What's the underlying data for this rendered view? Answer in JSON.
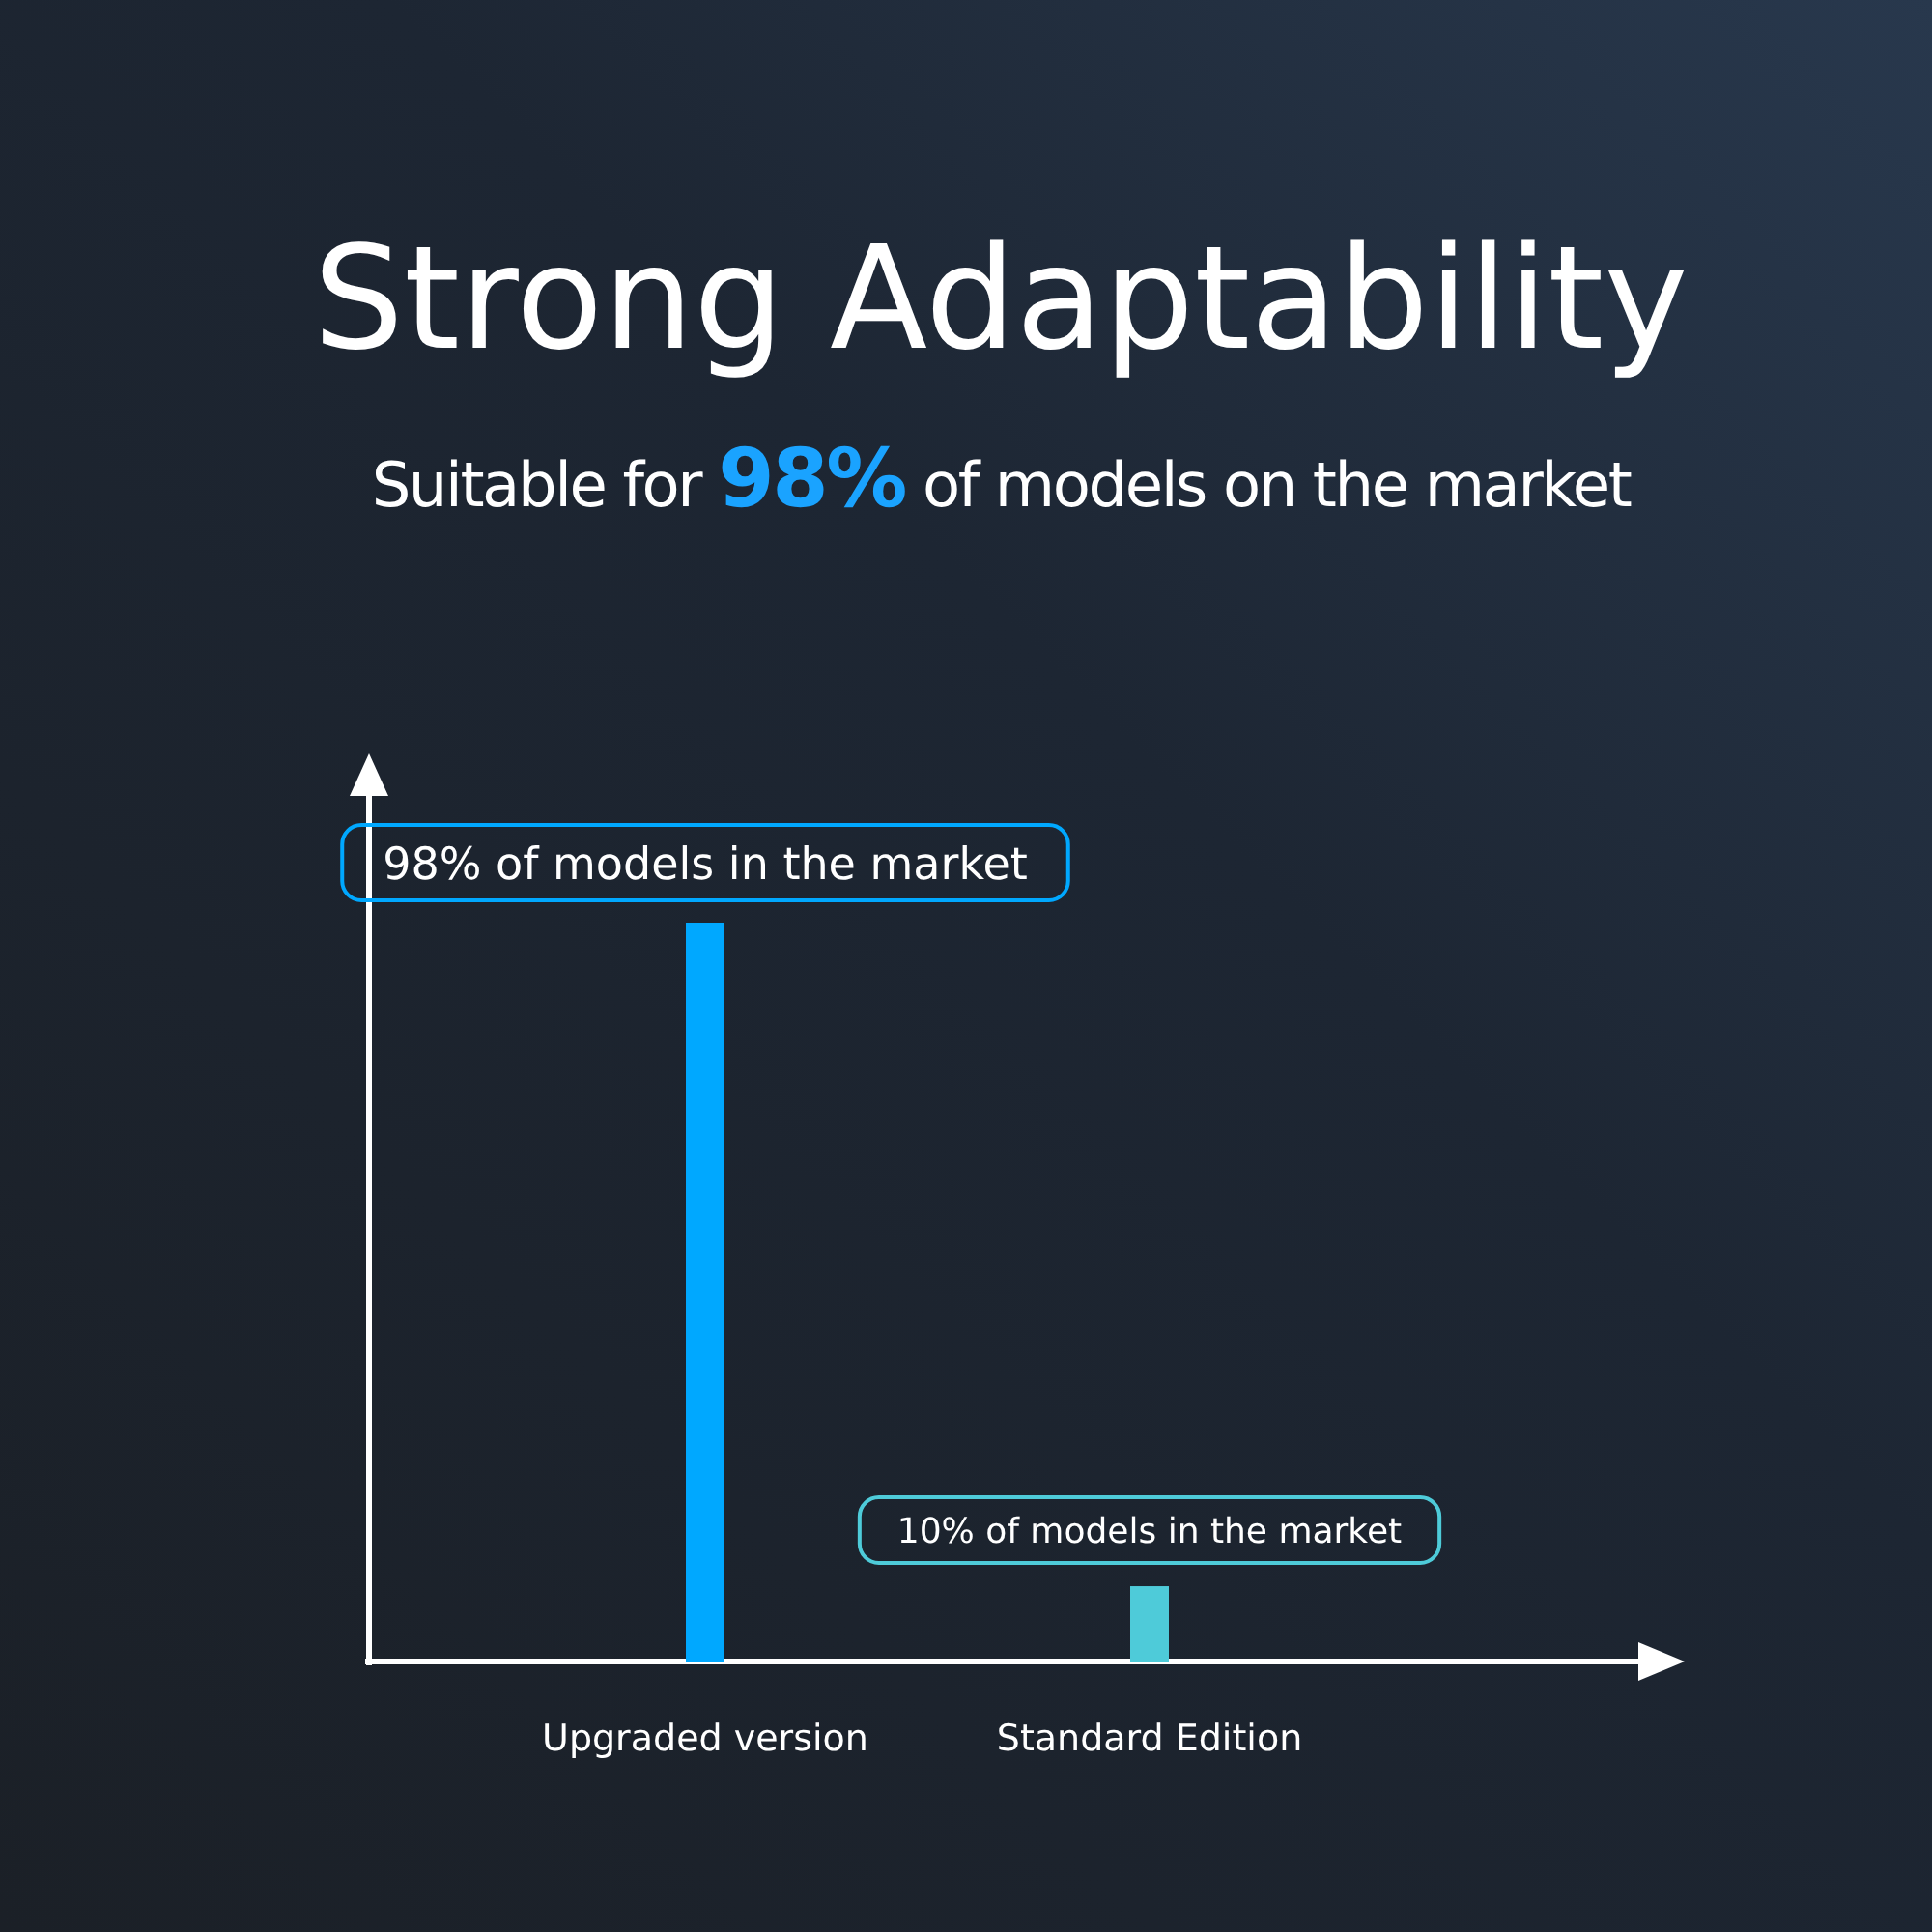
{
  "chart_data": {
    "type": "bar",
    "title": "Strong Adaptability",
    "subtitle": "Suitable for 98% of models on the market",
    "categories": [
      "Upgraded version",
      "Standard Edition"
    ],
    "values": [
      98,
      10
    ],
    "colors": [
      "#00a8ff",
      "#4ecbd9"
    ],
    "value_labels": [
      "98% of models in the market",
      "10% of models in the market"
    ]
  }
}
